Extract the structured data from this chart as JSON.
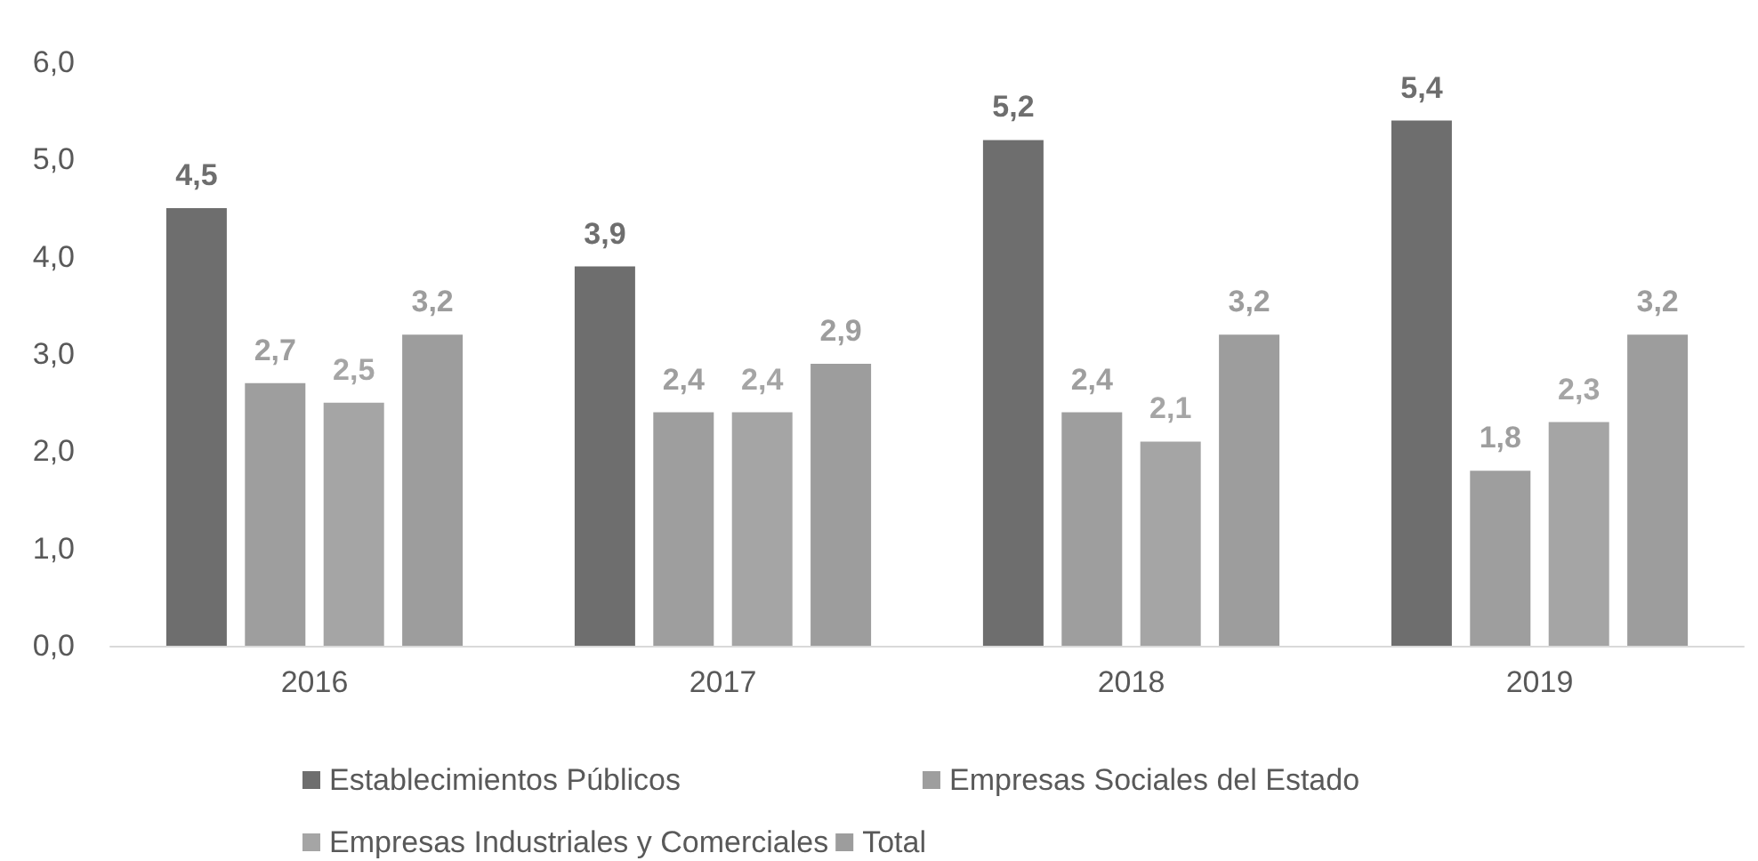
{
  "chart_data": {
    "type": "bar",
    "categories": [
      "2016",
      "2017",
      "2018",
      "2019"
    ],
    "series": [
      {
        "name": "Establecimientos Públicos",
        "color": "#6e6e6e",
        "values": [
          4.5,
          3.9,
          5.2,
          5.4
        ]
      },
      {
        "name": "Empresas Sociales del Estado",
        "color": "#9e9e9e",
        "values": [
          2.7,
          2.4,
          2.4,
          1.8
        ]
      },
      {
        "name": "Empresas Industriales y Comerciales",
        "color": "#a5a5a5",
        "values": [
          2.5,
          2.4,
          2.1,
          2.3
        ]
      },
      {
        "name": "Total",
        "color": "#9d9d9d",
        "values": [
          3.2,
          2.9,
          3.2,
          3.2
        ]
      }
    ],
    "ylim": [
      0,
      6
    ],
    "yticks": [
      {
        "value": 0,
        "label": "0,0"
      },
      {
        "value": 1,
        "label": "1,0"
      },
      {
        "value": 2,
        "label": "2,0"
      },
      {
        "value": 3,
        "label": "3,0"
      },
      {
        "value": 4,
        "label": "4,0"
      },
      {
        "value": 5,
        "label": "5,0"
      },
      {
        "value": 6,
        "label": "6,0"
      }
    ],
    "value_labels": [
      [
        "4,5",
        "3,9",
        "5,2",
        "5,4"
      ],
      [
        "2,7",
        "2,4",
        "2,4",
        "1,8"
      ],
      [
        "2,5",
        "2,4",
        "2,1",
        "2,3"
      ],
      [
        "3,2",
        "2,9",
        "3,2",
        "3,2"
      ]
    ],
    "grid": false,
    "legend": "bottom"
  }
}
